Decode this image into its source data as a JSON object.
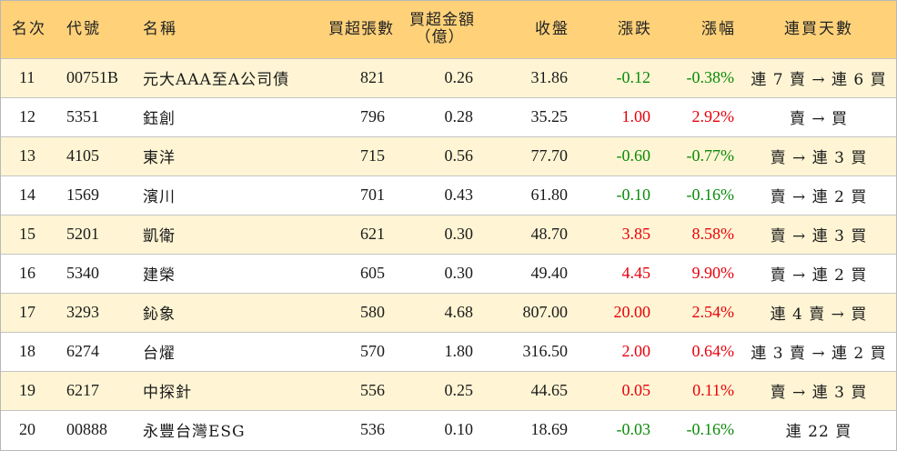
{
  "headers": {
    "rank": "名次",
    "code": "代號",
    "name": "名稱",
    "net_buy_volume": "買超張數",
    "net_buy_amount_line1": "買超金額",
    "net_buy_amount_line2": "（億）",
    "close": "收盤",
    "change": "漲跌",
    "change_pct": "漲幅",
    "consecutive_buy_days": "連買天數"
  },
  "rows": [
    {
      "rank": "11",
      "code": "00751B",
      "name": "元大AAA至A公司債",
      "volume": "821",
      "amount": "0.26",
      "close": "31.86",
      "change": "-0.12",
      "pct": "-0.38%",
      "direction": "down",
      "trend": "連 7 賣 → 連 6 買"
    },
    {
      "rank": "12",
      "code": "5351",
      "name": "鈺創",
      "volume": "796",
      "amount": "0.28",
      "close": "35.25",
      "change": "1.00",
      "pct": "2.92%",
      "direction": "up",
      "trend": "賣 → 買"
    },
    {
      "rank": "13",
      "code": "4105",
      "name": "東洋",
      "volume": "715",
      "amount": "0.56",
      "close": "77.70",
      "change": "-0.60",
      "pct": "-0.77%",
      "direction": "down",
      "trend": "賣 → 連 3 買"
    },
    {
      "rank": "14",
      "code": "1569",
      "name": "濱川",
      "volume": "701",
      "amount": "0.43",
      "close": "61.80",
      "change": "-0.10",
      "pct": "-0.16%",
      "direction": "down",
      "trend": "賣 → 連 2 買"
    },
    {
      "rank": "15",
      "code": "5201",
      "name": "凱衛",
      "volume": "621",
      "amount": "0.30",
      "close": "48.70",
      "change": "3.85",
      "pct": "8.58%",
      "direction": "up",
      "trend": "賣 → 連 3 買"
    },
    {
      "rank": "16",
      "code": "5340",
      "name": "建榮",
      "volume": "605",
      "amount": "0.30",
      "close": "49.40",
      "change": "4.45",
      "pct": "9.90%",
      "direction": "up",
      "trend": "賣 → 連 2 買"
    },
    {
      "rank": "17",
      "code": "3293",
      "name": "鈊象",
      "volume": "580",
      "amount": "4.68",
      "close": "807.00",
      "change": "20.00",
      "pct": "2.54%",
      "direction": "up",
      "trend": "連 4 賣 → 買"
    },
    {
      "rank": "18",
      "code": "6274",
      "name": "台燿",
      "volume": "570",
      "amount": "1.80",
      "close": "316.50",
      "change": "2.00",
      "pct": "0.64%",
      "direction": "up",
      "trend": "連 3 賣 → 連 2 買"
    },
    {
      "rank": "19",
      "code": "6217",
      "name": "中探針",
      "volume": "556",
      "amount": "0.25",
      "close": "44.65",
      "change": "0.05",
      "pct": "0.11%",
      "direction": "up",
      "trend": "賣 → 連 3 買"
    },
    {
      "rank": "20",
      "code": "00888",
      "name": "永豐台灣ESG",
      "volume": "536",
      "amount": "0.10",
      "close": "18.69",
      "change": "-0.03",
      "pct": "-0.16%",
      "direction": "down",
      "trend": "連 22 買"
    }
  ],
  "colors": {
    "header_bg": "#ffd27a",
    "odd_row_bg": "#fff5d4",
    "even_row_bg": "#ffffff",
    "up": "#e8000b",
    "down": "#0a8a0a"
  }
}
